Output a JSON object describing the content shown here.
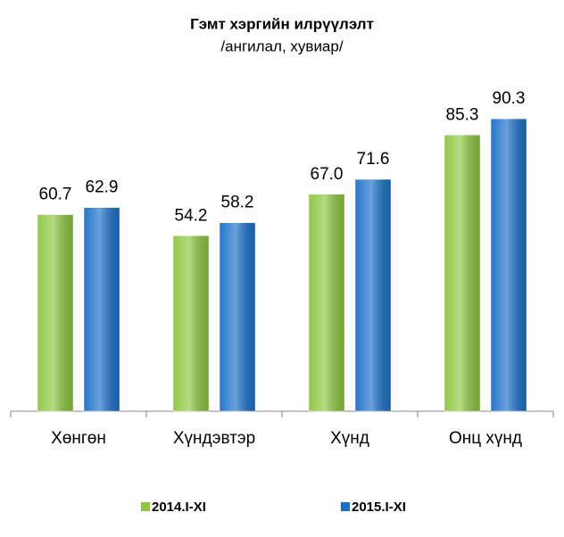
{
  "chart_data": {
    "type": "bar",
    "title": "Гэмт хэргийн илрүүлэлт",
    "subtitle": "/ангилал, хувиар/",
    "categories": [
      "Хөнгөн",
      "Хүндэвтэр",
      "Хүнд",
      "Онц хүнд"
    ],
    "series": [
      {
        "name": "2014.I-XI",
        "color": "#8cc63f",
        "values": [
          60.7,
          54.2,
          67.0,
          85.3
        ],
        "value_labels": [
          "60.7",
          "54.2",
          "67.0",
          "85.3"
        ]
      },
      {
        "name": "2015.I-XI",
        "color": "#1a6fc9",
        "values": [
          62.9,
          58.2,
          71.6,
          90.3
        ],
        "value_labels": [
          "62.9",
          "58.2",
          "71.6",
          "90.3"
        ]
      }
    ],
    "ylim": [
      0,
      100
    ],
    "legend": "bottom"
  }
}
